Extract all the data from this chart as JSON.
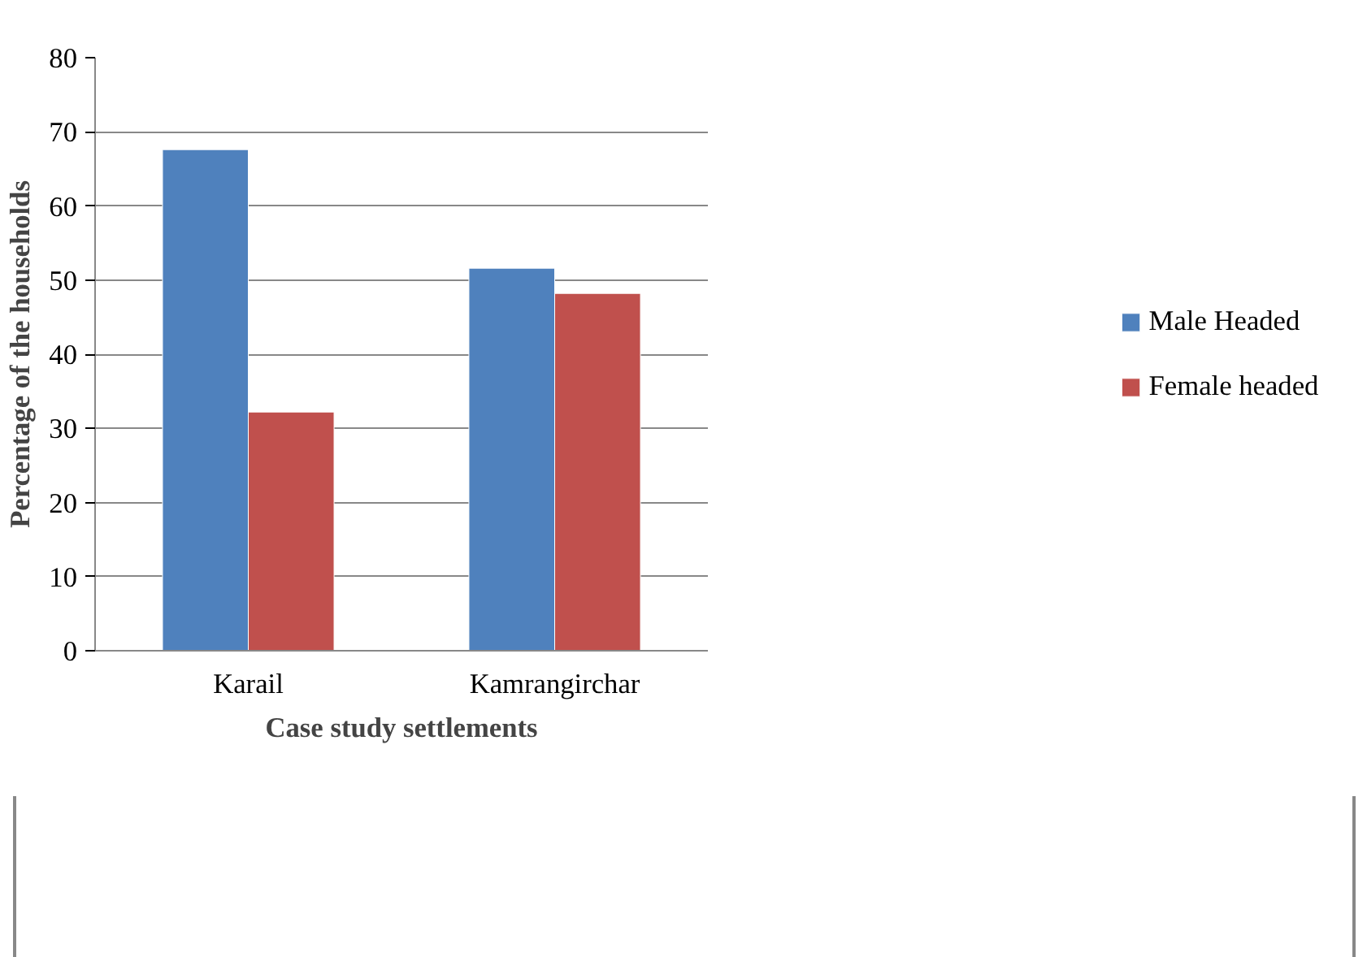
{
  "chart_data": {
    "type": "bar",
    "xlabel": "Case study settlements",
    "ylabel": "Percentage of the households",
    "categories": [
      "Karail",
      "Kamrangirchar"
    ],
    "series": [
      {
        "name": "Male Headed",
        "color": "#4f81bd",
        "values": [
          67.6,
          51.6
        ]
      },
      {
        "name": "Female headed",
        "color": "#c0504d",
        "values": [
          32.2,
          48.2
        ]
      }
    ],
    "ylim": [
      0,
      80
    ],
    "yticks": [
      0,
      10,
      20,
      30,
      40,
      50,
      60,
      70,
      80
    ],
    "grid": "y",
    "legend": "right"
  }
}
